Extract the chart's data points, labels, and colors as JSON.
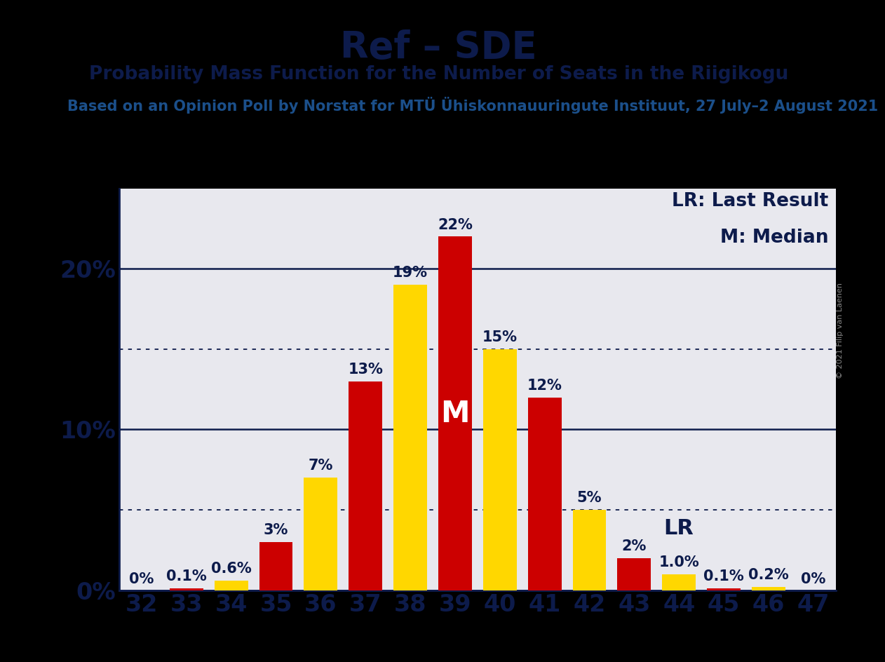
{
  "title": "Ref – SDE",
  "subtitle": "Probability Mass Function for the Number of Seats in the Riigikogu",
  "source_line": "Based on an Opinion Poll by Norstat for MTÜ Ühiskonnauuringute Instituut, 27 July–2 August 2021",
  "copyright": "© 2021 Filip van Laenen",
  "legend_lr": "LR: Last Result",
  "legend_m": "M: Median",
  "seats": [
    32,
    33,
    34,
    35,
    36,
    37,
    38,
    39,
    40,
    41,
    42,
    43,
    44,
    45,
    46,
    47
  ],
  "values": [
    0.0,
    0.1,
    0.6,
    3.0,
    7.0,
    13.0,
    19.0,
    22.0,
    15.0,
    12.0,
    5.0,
    2.0,
    1.0,
    0.1,
    0.2,
    0.0
  ],
  "colors": [
    "#CC0000",
    "#CC0000",
    "#FFD700",
    "#CC0000",
    "#FFD700",
    "#CC0000",
    "#FFD700",
    "#CC0000",
    "#FFD700",
    "#CC0000",
    "#FFD700",
    "#CC0000",
    "#FFD700",
    "#CC0000",
    "#FFD700",
    "#CC0000"
  ],
  "labels": [
    "0%",
    "0.1%",
    "0.6%",
    "3%",
    "7%",
    "13%",
    "19%",
    "22%",
    "15%",
    "12%",
    "5%",
    "2%",
    "1.0%",
    "0.1%",
    "0.2%",
    "0%"
  ],
  "yellow_color": "#FFD700",
  "red_color": "#CC0000",
  "bg_color": "#E8E8EE",
  "text_color": "#0D1B4B",
  "black_bar_color": "#000000",
  "median_idx": 7,
  "lr_idx": 11,
  "ylim_max": 25,
  "solid_gridlines": [
    0,
    10,
    20
  ],
  "dotted_gridlines": [
    5,
    15
  ],
  "title_fontsize": 38,
  "subtitle_fontsize": 19,
  "source_fontsize": 15,
  "axis_fontsize": 24,
  "bar_label_fontsize": 15,
  "legend_fontsize": 19,
  "median_fontsize": 30,
  "lr_fontsize": 22
}
